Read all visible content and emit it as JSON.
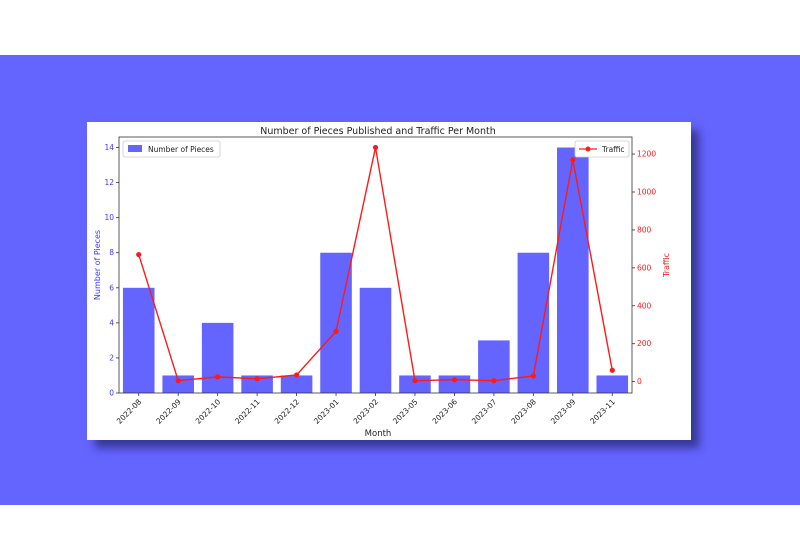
{
  "chart_data": {
    "type": "bar+line",
    "title": "Number of Pieces Published and Traffic Per Month",
    "xlabel": "Month",
    "ylabel_left": "Number of Pieces",
    "ylabel_right": "Traffic",
    "categories": [
      "2022-08",
      "2022-09",
      "2022-10",
      "2022-11",
      "2022-12",
      "2023-01",
      "2023-02",
      "2023-05",
      "2023-06",
      "2023-07",
      "2023-08",
      "2023-09",
      "2023-11"
    ],
    "series": [
      {
        "name": "Number of Pieces",
        "type": "bar",
        "axis": "left",
        "color": "#6464ff",
        "values": [
          6,
          1,
          4,
          1,
          1,
          8,
          6,
          1,
          1,
          3,
          8,
          14,
          1
        ]
      },
      {
        "name": "Traffic",
        "type": "line",
        "axis": "right",
        "color": "#ff1a1a",
        "values": [
          670,
          5,
          25,
          15,
          35,
          265,
          1235,
          5,
          10,
          5,
          30,
          1170,
          60
        ]
      }
    ],
    "ylim_left": [
      0,
      14.6
    ],
    "yticks_left": [
      0,
      2,
      4,
      6,
      8,
      10,
      12,
      14
    ],
    "ylim_right": [
      -60,
      1290
    ],
    "yticks_right": [
      0,
      200,
      400,
      600,
      800,
      1000,
      1200
    ],
    "legend_left_position": "top-left",
    "legend_right_position": "top-right",
    "grid": false
  }
}
